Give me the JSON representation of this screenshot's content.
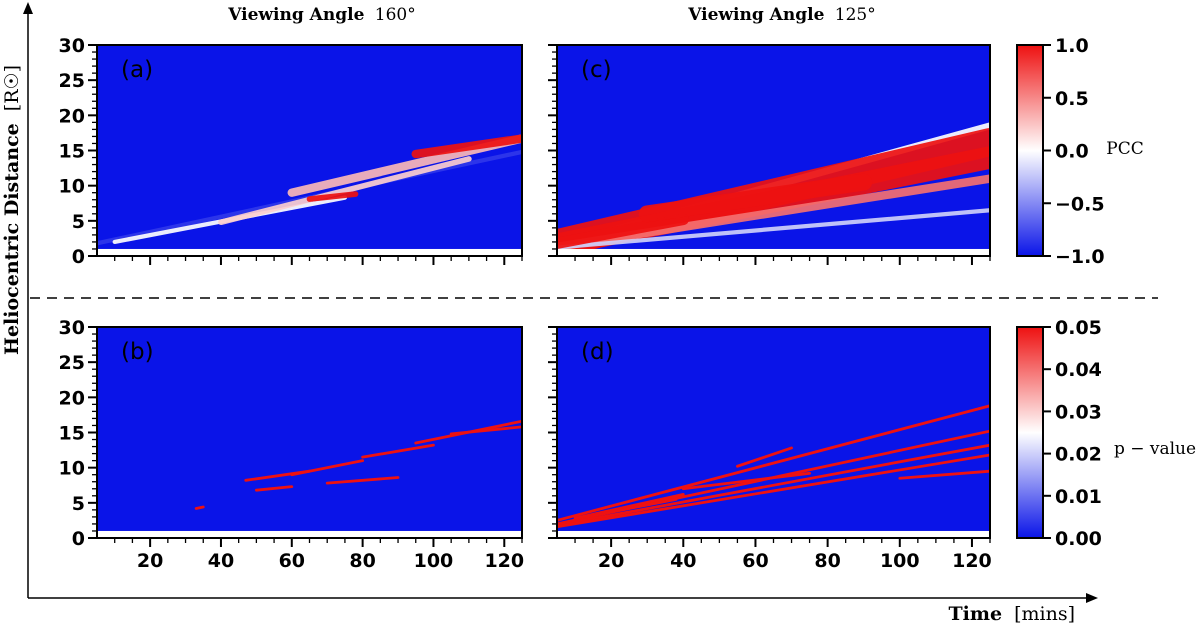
{
  "figure": {
    "ylabel": "Heliocentric Distance",
    "ylabel_unit": "[R☉]",
    "xlabel": "Time",
    "xlabel_unit": "[mins]",
    "column_titles": [
      {
        "bold": "Viewing Angle",
        "value": "160°"
      },
      {
        "bold": "Viewing Angle",
        "value": "125°"
      }
    ]
  },
  "colors": {
    "low": "#0a14e8",
    "mid": "#ffffff",
    "high": "#ee1111",
    "strip": "#ffffff",
    "axis": "#000000"
  },
  "chart_data": [
    {
      "type": "heatmap",
      "panel": "(a)",
      "metric": "PCC",
      "xlim": [
        5,
        125
      ],
      "ylim": [
        0,
        30
      ],
      "xticks": [
        20,
        40,
        60,
        80,
        100,
        120
      ],
      "show_xticklabels": false,
      "yticks": [
        0,
        5,
        10,
        15,
        20,
        25,
        30
      ],
      "show_yticklabels": true,
      "background_value": -1.0,
      "no_data_below": 1.0,
      "features": [
        {
          "x": [
            5,
            125
          ],
          "y": [
            1.8,
            14.8
          ],
          "value": -0.85,
          "width": 0.3
        },
        {
          "x": [
            10,
            75
          ],
          "y": [
            2.0,
            8.3
          ],
          "value": 0.0,
          "width": 0.3
        },
        {
          "x": [
            40,
            110
          ],
          "y": [
            4.8,
            13.8
          ],
          "value": 0.2,
          "width": 0.4
        },
        {
          "x": [
            60,
            125
          ],
          "y": [
            9.0,
            16.7
          ],
          "value": 0.3,
          "width": 0.6
        },
        {
          "x": [
            95,
            125
          ],
          "y": [
            14.5,
            16.7
          ],
          "value": 1.0,
          "width": 0.6
        },
        {
          "x": [
            65,
            78
          ],
          "y": [
            8.1,
            8.8
          ],
          "value": 1.0,
          "width": 0.4
        }
      ]
    },
    {
      "type": "heatmap",
      "panel": "(c)",
      "metric": "PCC",
      "xlim": [
        5,
        125
      ],
      "ylim": [
        0,
        30
      ],
      "xticks": [
        20,
        40,
        60,
        80,
        100,
        120
      ],
      "show_xticklabels": false,
      "yticks": [
        0,
        5,
        10,
        15,
        20,
        25,
        30
      ],
      "show_yticklabels": false,
      "background_value": -1.0,
      "no_data_below": 1.0,
      "features": [
        {
          "x": [
            5,
            125
          ],
          "y": [
            1.5,
            18.5
          ],
          "value": 0.0,
          "width": 0.5
        },
        {
          "x": [
            5,
            125
          ],
          "y": [
            1.8,
            16.2
          ],
          "value": 1.0,
          "width": 2.0
        },
        {
          "x": [
            5,
            125
          ],
          "y": [
            1.6,
            14.0
          ],
          "value": 1.0,
          "width": 1.6
        },
        {
          "x": [
            5,
            125
          ],
          "y": [
            1.3,
            11.0
          ],
          "value": 0.6,
          "width": 0.6
        },
        {
          "x": [
            5,
            125
          ],
          "y": [
            1.2,
            6.5
          ],
          "value": -0.2,
          "width": 0.3
        },
        {
          "x": [
            5,
            40
          ],
          "y": [
            1.8,
            5.2
          ],
          "value": 1.0,
          "width": 0.8
        },
        {
          "x": [
            30,
            90
          ],
          "y": [
            6.0,
            10.5
          ],
          "value": 1.0,
          "width": 1.2
        }
      ]
    },
    {
      "type": "heatmap",
      "panel": "(b)",
      "metric": "p − value",
      "xlim": [
        5,
        125
      ],
      "ylim": [
        0,
        30
      ],
      "xticks": [
        20,
        40,
        60,
        80,
        100,
        120
      ],
      "show_xticklabels": true,
      "yticks": [
        0,
        5,
        10,
        15,
        20,
        25,
        30
      ],
      "show_yticklabels": true,
      "background_value": 0.0,
      "no_data_below": 1.0,
      "features": [
        {
          "x": [
            33,
            35
          ],
          "y": [
            4.2,
            4.4
          ],
          "value": 0.05,
          "width": 0.2
        },
        {
          "x": [
            47,
            65
          ],
          "y": [
            8.2,
            9.5
          ],
          "value": 0.05,
          "width": 0.2
        },
        {
          "x": [
            50,
            60
          ],
          "y": [
            6.8,
            7.3
          ],
          "value": 0.05,
          "width": 0.2
        },
        {
          "x": [
            60,
            80
          ],
          "y": [
            9.0,
            11.0
          ],
          "value": 0.05,
          "width": 0.2
        },
        {
          "x": [
            70,
            90
          ],
          "y": [
            7.8,
            8.6
          ],
          "value": 0.05,
          "width": 0.2
        },
        {
          "x": [
            80,
            100
          ],
          "y": [
            11.5,
            13.2
          ],
          "value": 0.05,
          "width": 0.2
        },
        {
          "x": [
            95,
            125
          ],
          "y": [
            13.5,
            16.6
          ],
          "value": 0.05,
          "width": 0.2
        },
        {
          "x": [
            105,
            125
          ],
          "y": [
            14.8,
            15.8
          ],
          "value": 0.05,
          "width": 0.2
        }
      ]
    },
    {
      "type": "heatmap",
      "panel": "(d)",
      "metric": "p − value",
      "xlim": [
        5,
        125
      ],
      "ylim": [
        0,
        30
      ],
      "xticks": [
        20,
        40,
        60,
        80,
        100,
        120
      ],
      "show_xticklabels": true,
      "yticks": [
        0,
        5,
        10,
        15,
        20,
        25,
        30
      ],
      "show_yticklabels": false,
      "background_value": 0.0,
      "no_data_below": 1.0,
      "features": [
        {
          "x": [
            5,
            125
          ],
          "y": [
            2.5,
            18.8
          ],
          "value": 0.05,
          "width": 0.2
        },
        {
          "x": [
            5,
            125
          ],
          "y": [
            2.0,
            15.2
          ],
          "value": 0.05,
          "width": 0.2
        },
        {
          "x": [
            5,
            125
          ],
          "y": [
            1.8,
            13.2
          ],
          "value": 0.05,
          "width": 0.2
        },
        {
          "x": [
            5,
            125
          ],
          "y": [
            1.6,
            11.8
          ],
          "value": 0.05,
          "width": 0.2
        },
        {
          "x": [
            10,
            40
          ],
          "y": [
            2.8,
            6.2
          ],
          "value": 0.05,
          "width": 0.2
        },
        {
          "x": [
            15,
            38
          ],
          "y": [
            3.2,
            5.5
          ],
          "value": 0.05,
          "width": 0.2
        },
        {
          "x": [
            40,
            75
          ],
          "y": [
            7.0,
            9.2
          ],
          "value": 0.05,
          "width": 0.2
        },
        {
          "x": [
            55,
            70
          ],
          "y": [
            10.2,
            12.8
          ],
          "value": 0.05,
          "width": 0.2
        },
        {
          "x": [
            100,
            125
          ],
          "y": [
            8.5,
            9.5
          ],
          "value": 0.05,
          "width": 0.2
        }
      ]
    }
  ],
  "colorbars": [
    {
      "label": "PCC",
      "ticks": [
        "1.0",
        "0.5",
        "0.0",
        "−0.5",
        "−1.0"
      ],
      "range": [
        -1.0,
        1.0
      ]
    },
    {
      "label": "p − value",
      "ticks": [
        "0.05",
        "0.04",
        "0.03",
        "0.02",
        "0.01",
        "0.00"
      ],
      "range": [
        0.0,
        0.05
      ]
    }
  ]
}
